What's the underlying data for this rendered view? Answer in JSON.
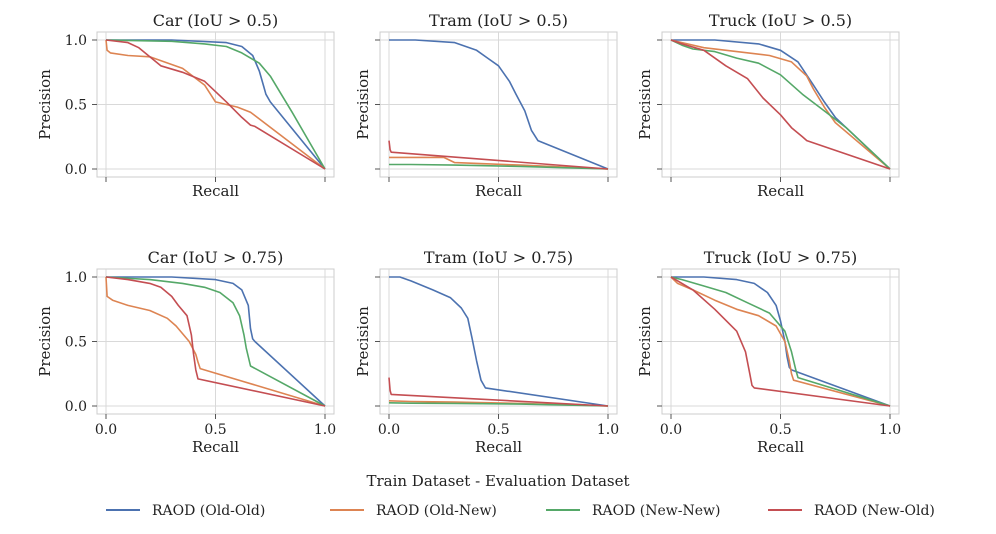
{
  "figure": {
    "suptitle": "Train Dataset - Evaluation Dataset"
  },
  "legend": [
    {
      "name": "RAOD (Old-Old)",
      "color": "#4c72b0"
    },
    {
      "name": "RAOD (Old-New)",
      "color": "#dd8452"
    },
    {
      "name": "RAOD (New-New)",
      "color": "#55a868"
    },
    {
      "name": "RAOD (New-Old)",
      "color": "#c44e52"
    }
  ],
  "chart_data": [
    {
      "type": "line",
      "title": "Car (IoU > 0.5)",
      "xlabel": "Recall",
      "ylabel": "Precision",
      "xlim": [
        0,
        1
      ],
      "ylim": [
        0,
        1
      ],
      "xticks": [
        "0.0",
        "0.5",
        "1.0"
      ],
      "yticks": [
        "0.0",
        "0.5",
        "1.0"
      ],
      "show_xticklabels": false,
      "show_yticklabels": true,
      "series": [
        {
          "name": "RAOD (Old-Old)",
          "x": [
            0,
            0.3,
            0.55,
            0.62,
            0.67,
            0.7,
            0.72,
            0.73,
            0.75,
            1.0
          ],
          "y": [
            1.0,
            1.0,
            0.98,
            0.95,
            0.88,
            0.76,
            0.64,
            0.58,
            0.52,
            0.0
          ]
        },
        {
          "name": "RAOD (Old-New)",
          "x": [
            0,
            0.005,
            0.02,
            0.1,
            0.2,
            0.3,
            0.35,
            0.45,
            0.5,
            0.6,
            0.66,
            1.0
          ],
          "y": [
            1.0,
            0.92,
            0.9,
            0.88,
            0.87,
            0.81,
            0.78,
            0.65,
            0.52,
            0.48,
            0.44,
            0.0
          ]
        },
        {
          "name": "RAOD (New-New)",
          "x": [
            0,
            0.3,
            0.45,
            0.55,
            0.62,
            0.7,
            0.75,
            0.8,
            0.85,
            1.0
          ],
          "y": [
            1.0,
            0.99,
            0.97,
            0.95,
            0.9,
            0.82,
            0.72,
            0.58,
            0.44,
            0.0
          ]
        },
        {
          "name": "RAOD (New-Old)",
          "x": [
            0,
            0.1,
            0.15,
            0.25,
            0.35,
            0.45,
            0.55,
            0.62,
            0.66,
            0.68,
            1.0
          ],
          "y": [
            1.0,
            0.98,
            0.94,
            0.8,
            0.75,
            0.68,
            0.52,
            0.4,
            0.34,
            0.33,
            0.0
          ]
        }
      ]
    },
    {
      "type": "line",
      "title": "Tram (IoU > 0.5)",
      "xlabel": "Recall",
      "ylabel": "Precision",
      "xlim": [
        0,
        1
      ],
      "ylim": [
        0,
        1
      ],
      "xticks": [
        "0.0",
        "0.5",
        "1.0"
      ],
      "yticks": [
        "0.0",
        "0.5",
        "1.0"
      ],
      "show_xticklabels": false,
      "show_yticklabels": false,
      "series": [
        {
          "name": "RAOD (Old-Old)",
          "x": [
            0,
            0.12,
            0.3,
            0.4,
            0.45,
            0.5,
            0.55,
            0.58,
            0.62,
            0.65,
            0.68,
            1.0
          ],
          "y": [
            1.0,
            1.0,
            0.98,
            0.92,
            0.86,
            0.8,
            0.68,
            0.58,
            0.45,
            0.3,
            0.22,
            0.0
          ]
        },
        {
          "name": "RAOD (Old-New)",
          "x": [
            0,
            0.02,
            0.25,
            0.3,
            0.6,
            1.0
          ],
          "y": [
            0.09,
            0.09,
            0.09,
            0.05,
            0.03,
            0.0
          ]
        },
        {
          "name": "RAOD (New-New)",
          "x": [
            0,
            0.1,
            0.3,
            0.6,
            1.0
          ],
          "y": [
            0.035,
            0.035,
            0.03,
            0.02,
            0.0
          ]
        },
        {
          "name": "RAOD (New-Old)",
          "x": [
            0,
            0.005,
            0.01,
            1.0
          ],
          "y": [
            0.22,
            0.15,
            0.13,
            0.0
          ]
        }
      ]
    },
    {
      "type": "line",
      "title": "Truck (IoU > 0.5)",
      "xlabel": "Recall",
      "ylabel": "Precision",
      "xlim": [
        0,
        1
      ],
      "ylim": [
        0,
        1
      ],
      "xticks": [
        "0.0",
        "0.5",
        "1.0"
      ],
      "yticks": [
        "0.0",
        "0.5",
        "1.0"
      ],
      "show_xticklabels": false,
      "show_yticklabels": false,
      "series": [
        {
          "name": "RAOD (Old-Old)",
          "x": [
            0,
            0.2,
            0.4,
            0.5,
            0.58,
            0.65,
            0.7,
            0.75,
            0.8,
            1.0
          ],
          "y": [
            1.0,
            1.0,
            0.97,
            0.92,
            0.83,
            0.65,
            0.52,
            0.4,
            0.32,
            0.0
          ]
        },
        {
          "name": "RAOD (Old-New)",
          "x": [
            0,
            0.05,
            0.15,
            0.3,
            0.45,
            0.55,
            0.62,
            0.65,
            0.7,
            0.75,
            1.0
          ],
          "y": [
            1.0,
            0.98,
            0.94,
            0.91,
            0.88,
            0.83,
            0.72,
            0.62,
            0.48,
            0.36,
            0.0
          ]
        },
        {
          "name": "RAOD (New-New)",
          "x": [
            0,
            0.05,
            0.1,
            0.2,
            0.3,
            0.4,
            0.5,
            0.6,
            0.7,
            0.8,
            1.0
          ],
          "y": [
            1.0,
            0.96,
            0.93,
            0.91,
            0.86,
            0.82,
            0.73,
            0.58,
            0.45,
            0.32,
            0.0
          ]
        },
        {
          "name": "RAOD (New-Old)",
          "x": [
            0,
            0.05,
            0.15,
            0.25,
            0.35,
            0.42,
            0.5,
            0.55,
            0.6,
            0.62,
            1.0
          ],
          "y": [
            1.0,
            0.97,
            0.92,
            0.8,
            0.7,
            0.55,
            0.42,
            0.32,
            0.25,
            0.22,
            0.0
          ]
        }
      ]
    },
    {
      "type": "line",
      "title": "Car (IoU > 0.75)",
      "xlabel": "Recall",
      "ylabel": "Precision",
      "xlim": [
        0,
        1
      ],
      "ylim": [
        0,
        1
      ],
      "xticks": [
        "0.0",
        "0.5",
        "1.0"
      ],
      "yticks": [
        "0.0",
        "0.5",
        "1.0"
      ],
      "show_xticklabels": true,
      "show_yticklabels": true,
      "series": [
        {
          "name": "RAOD (Old-Old)",
          "x": [
            0,
            0.3,
            0.5,
            0.58,
            0.62,
            0.65,
            0.66,
            0.67,
            0.68,
            1.0
          ],
          "y": [
            1.0,
            1.0,
            0.98,
            0.95,
            0.9,
            0.78,
            0.6,
            0.52,
            0.5,
            0.0
          ]
        },
        {
          "name": "RAOD (Old-New)",
          "x": [
            0,
            0.005,
            0.03,
            0.1,
            0.2,
            0.28,
            0.32,
            0.38,
            0.41,
            0.42,
            0.43,
            1.0
          ],
          "y": [
            1.0,
            0.85,
            0.82,
            0.78,
            0.74,
            0.68,
            0.62,
            0.5,
            0.4,
            0.34,
            0.29,
            0.0
          ]
        },
        {
          "name": "RAOD (New-New)",
          "x": [
            0,
            0.2,
            0.35,
            0.45,
            0.52,
            0.58,
            0.61,
            0.63,
            0.64,
            0.66,
            1.0
          ],
          "y": [
            1.0,
            0.98,
            0.95,
            0.92,
            0.88,
            0.8,
            0.7,
            0.55,
            0.45,
            0.31,
            0.0
          ]
        },
        {
          "name": "RAOD (New-Old)",
          "x": [
            0,
            0.1,
            0.2,
            0.25,
            0.3,
            0.33,
            0.37,
            0.39,
            0.4,
            0.41,
            0.42,
            1.0
          ],
          "y": [
            1.0,
            0.98,
            0.95,
            0.92,
            0.85,
            0.78,
            0.7,
            0.55,
            0.4,
            0.28,
            0.21,
            0.0
          ]
        }
      ]
    },
    {
      "type": "line",
      "title": "Tram (IoU > 0.75)",
      "xlabel": "Recall",
      "ylabel": "Precision",
      "xlim": [
        0,
        1
      ],
      "ylim": [
        0,
        1
      ],
      "xticks": [
        "0.0",
        "0.5",
        "1.0"
      ],
      "yticks": [
        "0.0",
        "0.5",
        "1.0"
      ],
      "show_xticklabels": true,
      "show_yticklabels": false,
      "series": [
        {
          "name": "RAOD (Old-Old)",
          "x": [
            0,
            0.05,
            0.1,
            0.2,
            0.28,
            0.33,
            0.36,
            0.38,
            0.4,
            0.42,
            0.44,
            1.0
          ],
          "y": [
            1.0,
            1.0,
            0.97,
            0.9,
            0.84,
            0.76,
            0.68,
            0.52,
            0.35,
            0.2,
            0.14,
            0.0
          ]
        },
        {
          "name": "RAOD (Old-New)",
          "x": [
            0,
            0.1,
            0.3,
            0.6,
            1.0
          ],
          "y": [
            0.04,
            0.035,
            0.03,
            0.02,
            0.0
          ]
        },
        {
          "name": "RAOD (New-New)",
          "x": [
            0,
            0.1,
            0.3,
            0.6,
            1.0
          ],
          "y": [
            0.025,
            0.022,
            0.02,
            0.015,
            0.0
          ]
        },
        {
          "name": "RAOD (New-Old)",
          "x": [
            0,
            0.005,
            0.01,
            1.0
          ],
          "y": [
            0.22,
            0.12,
            0.09,
            0.0
          ]
        }
      ]
    },
    {
      "type": "line",
      "title": "Truck (IoU > 0.75)",
      "xlabel": "Recall",
      "ylabel": "Precision",
      "xlim": [
        0,
        1
      ],
      "ylim": [
        0,
        1
      ],
      "xticks": [
        "0.0",
        "0.5",
        "1.0"
      ],
      "yticks": [
        "0.0",
        "0.5",
        "1.0"
      ],
      "show_xticklabels": true,
      "show_yticklabels": false,
      "series": [
        {
          "name": "RAOD (Old-Old)",
          "x": [
            0,
            0.15,
            0.3,
            0.38,
            0.44,
            0.48,
            0.5,
            0.52,
            0.53,
            0.54,
            0.55,
            1.0
          ],
          "y": [
            1.0,
            1.0,
            0.98,
            0.95,
            0.88,
            0.78,
            0.66,
            0.5,
            0.38,
            0.3,
            0.28,
            0.0
          ]
        },
        {
          "name": "RAOD (Old-New)",
          "x": [
            0,
            0.03,
            0.1,
            0.2,
            0.3,
            0.4,
            0.48,
            0.52,
            0.54,
            0.55,
            0.56,
            1.0
          ],
          "y": [
            1.0,
            0.95,
            0.9,
            0.82,
            0.75,
            0.7,
            0.62,
            0.5,
            0.35,
            0.25,
            0.2,
            0.0
          ]
        },
        {
          "name": "RAOD (New-New)",
          "x": [
            0,
            0.05,
            0.15,
            0.25,
            0.35,
            0.45,
            0.52,
            0.55,
            0.57,
            0.58,
            1.0
          ],
          "y": [
            1.0,
            0.98,
            0.93,
            0.88,
            0.8,
            0.72,
            0.58,
            0.42,
            0.28,
            0.22,
            0.0
          ]
        },
        {
          "name": "RAOD (New-Old)",
          "x": [
            0,
            0.05,
            0.1,
            0.2,
            0.3,
            0.34,
            0.36,
            0.37,
            0.38,
            1.0
          ],
          "y": [
            1.0,
            0.95,
            0.9,
            0.75,
            0.58,
            0.42,
            0.25,
            0.16,
            0.14,
            0.0
          ]
        }
      ]
    }
  ]
}
